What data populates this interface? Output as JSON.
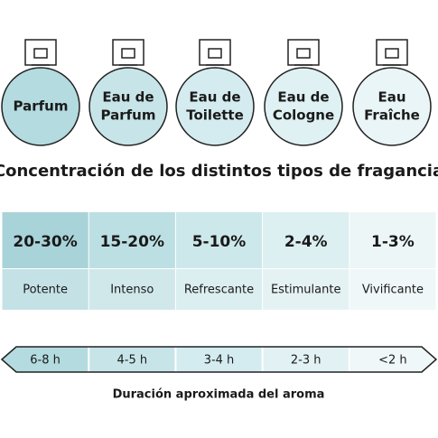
{
  "bottles": [
    {
      "lines": [
        "Parfum"
      ]
    },
    {
      "lines": [
        "Eau de",
        "Parfum"
      ]
    },
    {
      "lines": [
        "Eau de",
        "Toilette"
      ]
    },
    {
      "lines": [
        "Eau de",
        "Cologne"
      ]
    },
    {
      "lines": [
        "Eau",
        "Fraîche"
      ]
    }
  ],
  "title": "Concentración de los distintos tipos de fragancia",
  "concentrations": [
    {
      "percent": "20-30%",
      "description": "Potente"
    },
    {
      "percent": "15-20%",
      "description": "Intenso"
    },
    {
      "percent": "5-10%",
      "description": "Refrescante"
    },
    {
      "percent": "2-4%",
      "description": "Estimulante"
    },
    {
      "percent": "1-3%",
      "description": "Vivificante"
    }
  ],
  "durations": [
    "6-8 h",
    "4-5 h",
    "3-4 h",
    "2-3 h",
    "<2 h"
  ],
  "caption": "Duración aproximada del aroma"
}
